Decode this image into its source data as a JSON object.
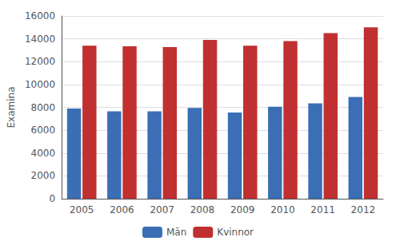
{
  "chart_data": {
    "type": "bar",
    "categories": [
      "2005",
      "2006",
      "2007",
      "2008",
      "2009",
      "2010",
      "2011",
      "2012"
    ],
    "series": [
      {
        "name": "Män",
        "color": "#3B6EB5",
        "values": [
          7900,
          7650,
          7650,
          7950,
          7550,
          8050,
          8350,
          8900
        ]
      },
      {
        "name": "Kvinnor",
        "color": "#C03030",
        "values": [
          13400,
          13350,
          13280,
          13900,
          13400,
          13800,
          14500,
          15000
        ]
      }
    ],
    "ylabel": "Examina",
    "ylim": [
      0,
      16000
    ],
    "yticks": [
      0,
      2000,
      4000,
      6000,
      8000,
      10000,
      12000,
      14000,
      16000
    ],
    "grid": true,
    "legend": "bottom"
  }
}
